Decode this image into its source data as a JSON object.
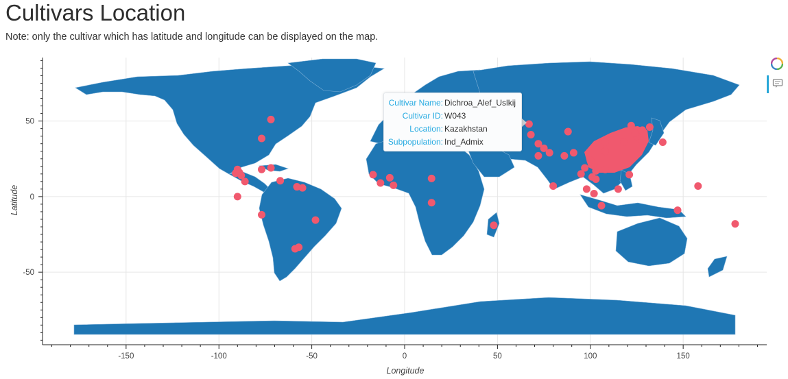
{
  "page": {
    "title": "Cultivars Location",
    "note": "Note: only the cultivar which has latitude and longitude can be displayed on the map."
  },
  "map": {
    "xlabel": "Longitude",
    "ylabel": "Latitude",
    "xlim": [
      -195,
      195
    ],
    "ylim": [
      -98,
      92
    ],
    "xticks": [
      -150,
      -100,
      -50,
      0,
      50,
      100,
      150
    ],
    "yticks": [
      -50,
      0,
      50
    ],
    "grid": true,
    "land_color": "#1f77b4",
    "marker_color": "#f0596e",
    "points": [
      [
        -72,
        51
      ],
      [
        -77,
        38.5
      ],
      [
        -90,
        18
      ],
      [
        -91,
        15.5
      ],
      [
        -88,
        14
      ],
      [
        -89,
        16
      ],
      [
        -86,
        10
      ],
      [
        -77,
        18
      ],
      [
        -72,
        19
      ],
      [
        -67,
        10.5
      ],
      [
        -58,
        6.5
      ],
      [
        -55,
        5.8
      ],
      [
        -90,
        0
      ],
      [
        -77,
        -12
      ],
      [
        -48,
        -15.5
      ],
      [
        -57,
        -33.5
      ],
      [
        -59,
        -34.5
      ],
      [
        -17,
        14.5
      ],
      [
        -13,
        9
      ],
      [
        -8,
        12.5
      ],
      [
        -6,
        7.5
      ],
      [
        14.5,
        12
      ],
      [
        14.5,
        -4
      ],
      [
        48,
        -19
      ],
      [
        67,
        48
      ],
      [
        68,
        41
      ],
      [
        72,
        35
      ],
      [
        75,
        32
      ],
      [
        78,
        29
      ],
      [
        72,
        27
      ],
      [
        80,
        7
      ],
      [
        86,
        27
      ],
      [
        88,
        43
      ],
      [
        91,
        29
      ],
      [
        95,
        15
      ],
      [
        98,
        5
      ],
      [
        101,
        13
      ],
      [
        103,
        11.5
      ],
      [
        102,
        2
      ],
      [
        106,
        -6
      ],
      [
        110,
        34
      ],
      [
        116,
        40
      ],
      [
        120,
        32
      ],
      [
        122,
        47
      ],
      [
        128,
        44
      ],
      [
        132,
        46
      ],
      [
        139,
        36
      ],
      [
        113,
        23
      ],
      [
        118,
        26
      ],
      [
        121,
        14.5
      ],
      [
        110,
        20
      ],
      [
        115,
        5
      ],
      [
        147,
        -9
      ],
      [
        158,
        7
      ],
      [
        178,
        -18
      ],
      [
        104,
        30
      ],
      [
        108,
        27
      ],
      [
        105,
        25
      ],
      [
        112,
        28
      ]
    ],
    "cluster": [
      [
        102,
        22
      ],
      [
        108,
        36
      ],
      [
        100,
        24
      ],
      [
        108,
        18
      ],
      [
        125,
        40
      ],
      [
        128,
        37
      ],
      [
        124,
        42
      ],
      [
        108,
        30
      ],
      [
        118,
        36
      ],
      [
        97,
        19
      ],
      [
        103,
        17
      ]
    ]
  },
  "tooltip": {
    "rows": [
      {
        "label": "Cultivar Name:",
        "value": "Dichroa_Alef_Uslkij"
      },
      {
        "label": "Cultivar ID:",
        "value": "W043"
      },
      {
        "label": "Location:",
        "value": "Kazakhstan"
      },
      {
        "label": "Subpopulation:",
        "value": "Ind_Admix"
      }
    ]
  },
  "toolbar": {
    "tools": [
      {
        "icon": "bokeh-logo-icon"
      },
      {
        "icon": "hover-tool-icon"
      }
    ]
  }
}
